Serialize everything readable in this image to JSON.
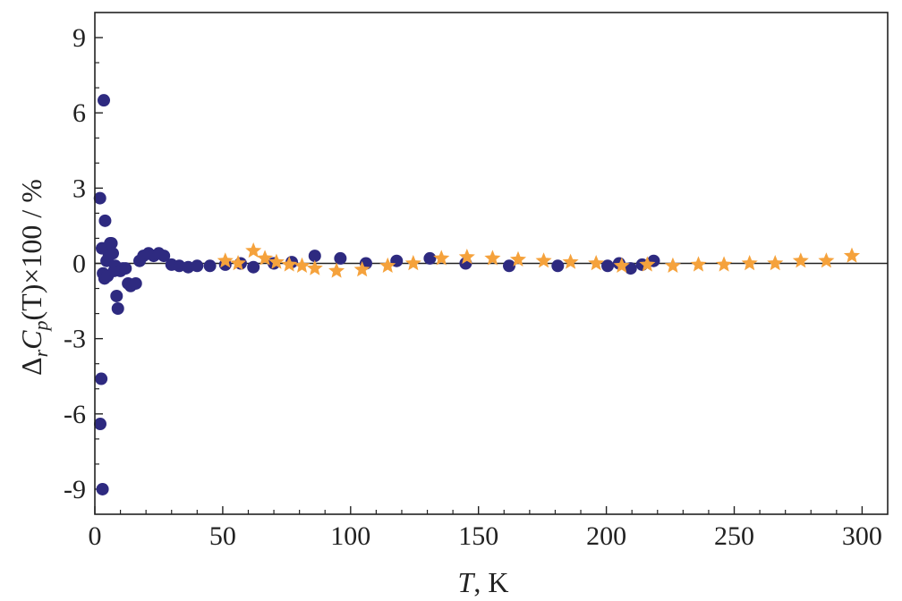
{
  "chart_data": {
    "type": "scatter",
    "xlabel": {
      "italic": "T",
      "rest": ", K"
    },
    "ylabel": {
      "prefix": "Δ",
      "sub1": "r",
      "C": "C",
      "sub2": "p",
      "rest": "(T)×100 / %"
    },
    "xlim": [
      0,
      310
    ],
    "ylim": [
      -10,
      10
    ],
    "xticks": [
      0,
      50,
      100,
      150,
      200,
      250,
      300
    ],
    "xtick_labels": [
      "0",
      "50",
      "100",
      "150",
      "200",
      "250",
      "300"
    ],
    "yticks": [
      -9,
      -6,
      -3,
      0,
      3,
      6,
      9
    ],
    "ytick_labels": [
      "-9",
      "-6",
      "-3",
      "0",
      "3",
      "6",
      "9"
    ],
    "zero_line": true,
    "grid": false,
    "series": [
      {
        "marker": "circle",
        "color": "#2e2a80",
        "points": [
          [
            2.0,
            2.6
          ],
          [
            2.1,
            -6.4
          ],
          [
            2.5,
            -4.6
          ],
          [
            2.8,
            0.6
          ],
          [
            3.0,
            -9.0
          ],
          [
            3.2,
            -0.4
          ],
          [
            3.5,
            6.5
          ],
          [
            3.8,
            -0.6
          ],
          [
            4.0,
            1.7
          ],
          [
            4.3,
            0.6
          ],
          [
            4.6,
            0.1
          ],
          [
            5.0,
            -0.5
          ],
          [
            5.5,
            0.3
          ],
          [
            6.0,
            0.8
          ],
          [
            6.5,
            0.8
          ],
          [
            7.0,
            0.4
          ],
          [
            7.5,
            -0.3
          ],
          [
            8.0,
            -0.1
          ],
          [
            8.5,
            -1.3
          ],
          [
            9.0,
            -1.8
          ],
          [
            10.0,
            -0.3
          ],
          [
            11.0,
            -0.2
          ],
          [
            12.0,
            -0.2
          ],
          [
            13.0,
            -0.8
          ],
          [
            14.0,
            -0.9
          ],
          [
            16.0,
            -0.8
          ],
          [
            17.5,
            0.1
          ],
          [
            19.0,
            0.3
          ],
          [
            21.0,
            0.4
          ],
          [
            23.0,
            0.3
          ],
          [
            25.0,
            0.4
          ],
          [
            27.0,
            0.3
          ],
          [
            30.0,
            -0.05
          ],
          [
            33.0,
            -0.1
          ],
          [
            36.5,
            -0.15
          ],
          [
            40.0,
            -0.1
          ],
          [
            45.0,
            -0.1
          ],
          [
            51.0,
            -0.05
          ],
          [
            57.0,
            0.0
          ],
          [
            62.0,
            -0.15
          ],
          [
            70.0,
            0.0
          ],
          [
            77.0,
            0.05
          ],
          [
            86.0,
            0.3
          ],
          [
            96.0,
            0.2
          ],
          [
            106.0,
            0.0
          ],
          [
            118.0,
            0.1
          ],
          [
            131.0,
            0.2
          ],
          [
            145.0,
            0.0
          ],
          [
            162.0,
            -0.1
          ],
          [
            181.0,
            -0.1
          ],
          [
            200.5,
            -0.1
          ],
          [
            205.0,
            0.0
          ],
          [
            209.5,
            -0.2
          ],
          [
            214.0,
            -0.05
          ],
          [
            218.5,
            0.1
          ]
        ]
      },
      {
        "marker": "star",
        "color": "#f5a23c",
        "points": [
          [
            51.0,
            0.1
          ],
          [
            56.0,
            0.0
          ],
          [
            62.0,
            0.5
          ],
          [
            66.5,
            0.2
          ],
          [
            71.0,
            0.05
          ],
          [
            76.0,
            -0.05
          ],
          [
            81.0,
            -0.1
          ],
          [
            86.0,
            -0.2
          ],
          [
            94.5,
            -0.3
          ],
          [
            104.5,
            -0.25
          ],
          [
            114.5,
            -0.1
          ],
          [
            124.5,
            0.0
          ],
          [
            135.5,
            0.2
          ],
          [
            145.5,
            0.25
          ],
          [
            155.5,
            0.2
          ],
          [
            165.5,
            0.15
          ],
          [
            175.5,
            0.1
          ],
          [
            186.0,
            0.05
          ],
          [
            196.0,
            0.0
          ],
          [
            206.0,
            -0.1
          ],
          [
            216.0,
            -0.05
          ],
          [
            226.0,
            -0.1
          ],
          [
            236.0,
            -0.05
          ],
          [
            246.0,
            -0.05
          ],
          [
            256.0,
            0.0
          ],
          [
            266.0,
            0.0
          ],
          [
            276.0,
            0.1
          ],
          [
            286.0,
            0.1
          ],
          [
            296.0,
            0.3
          ]
        ]
      }
    ]
  }
}
